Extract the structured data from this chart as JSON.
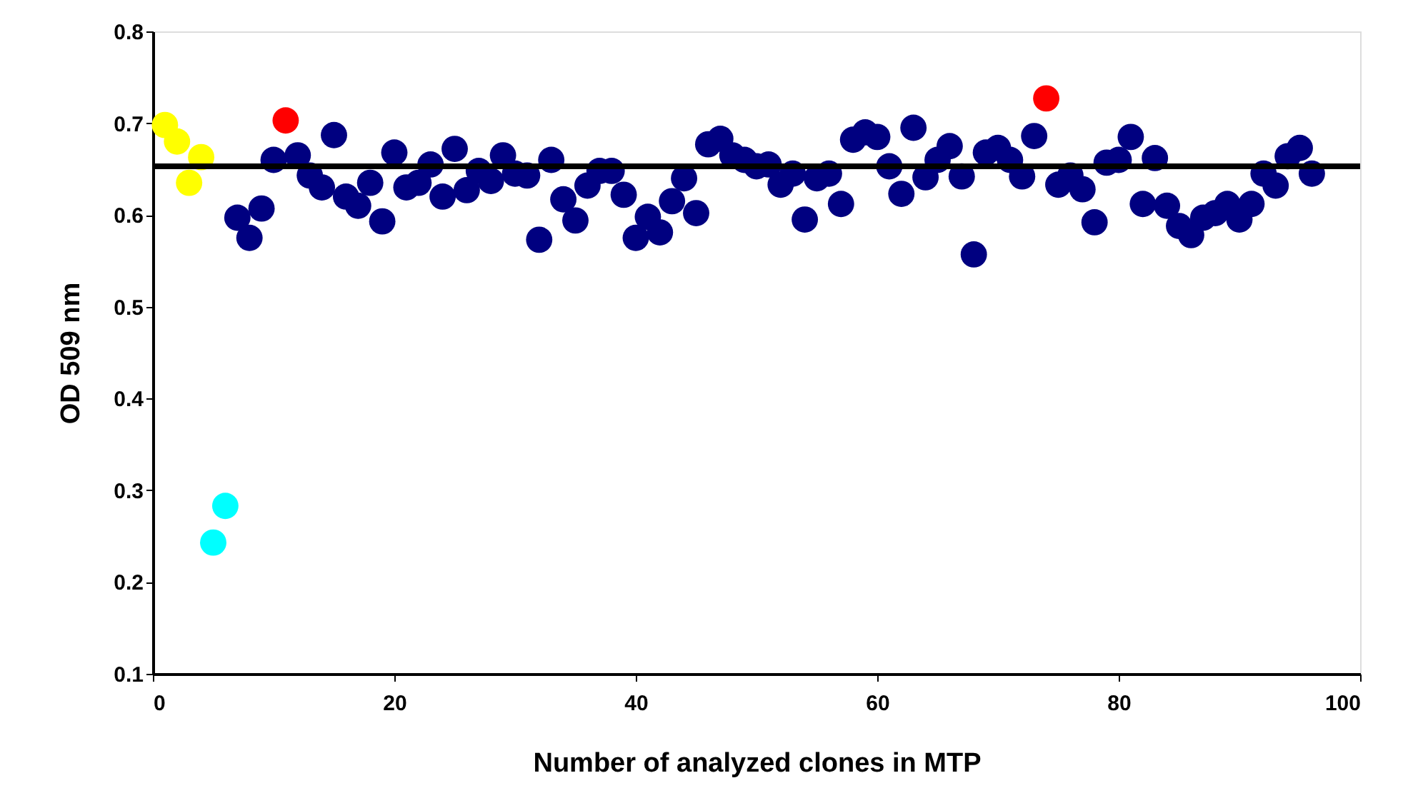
{
  "chart_data": {
    "type": "scatter",
    "xlabel": "Number of analyzed clones in MTP",
    "ylabel": "OD 509 nm",
    "xlim": [
      0,
      100
    ],
    "xticks": [
      0,
      20,
      40,
      60,
      80,
      100
    ],
    "ylim": [
      0.1,
      0.8
    ],
    "yticks": [
      0.1,
      0.2,
      0.3,
      0.4,
      0.5,
      0.6,
      0.7,
      0.8
    ],
    "grid": false,
    "legend": false,
    "marker": "circle",
    "series": [
      {
        "color": "#ffff00",
        "x": [
          1,
          2,
          3,
          4
        ],
        "values": [
          0.698,
          0.68,
          0.635,
          0.663
        ]
      },
      {
        "color": "#00ffff",
        "x": [
          5,
          6
        ],
        "values": [
          0.243,
          0.283
        ]
      },
      {
        "color": "#ff0000",
        "x": [
          11,
          74
        ],
        "values": [
          0.703,
          0.727
        ]
      },
      {
        "color": "#000080",
        "x": [
          7,
          8,
          9,
          10,
          12,
          13,
          14,
          15,
          16,
          17,
          18,
          19,
          20,
          21,
          22,
          23,
          24,
          25,
          26,
          27,
          28,
          29,
          30,
          31,
          32,
          33,
          34,
          35,
          36,
          37,
          38,
          39,
          40,
          41,
          42,
          43,
          44,
          45,
          46,
          47,
          48,
          49,
          50,
          51,
          52,
          53,
          54,
          55,
          56,
          57,
          58,
          59,
          60,
          61,
          62,
          63,
          64,
          65,
          66,
          67,
          68,
          69,
          70,
          71,
          72,
          73,
          75,
          76,
          77,
          78,
          79,
          80,
          81,
          82,
          83,
          84,
          85,
          86,
          87,
          88,
          89,
          90,
          91,
          92,
          93,
          94,
          95,
          96
        ],
        "values": [
          0.597,
          0.575,
          0.607,
          0.66,
          0.665,
          0.643,
          0.63,
          0.687,
          0.62,
          0.61,
          0.635,
          0.593,
          0.668,
          0.63,
          0.635,
          0.655,
          0.62,
          0.672,
          0.627,
          0.648,
          0.637,
          0.665,
          0.645,
          0.643,
          0.573,
          0.66,
          0.617,
          0.594,
          0.632,
          0.648,
          0.648,
          0.622,
          0.575,
          0.598,
          0.581,
          0.615,
          0.64,
          0.602,
          0.677,
          0.683,
          0.665,
          0.66,
          0.653,
          0.655,
          0.633,
          0.645,
          0.595,
          0.64,
          0.645,
          0.612,
          0.682,
          0.69,
          0.685,
          0.653,
          0.623,
          0.695,
          0.641,
          0.66,
          0.675,
          0.642,
          0.557,
          0.668,
          0.673,
          0.66,
          0.642,
          0.686,
          0.633,
          0.643,
          0.628,
          0.592,
          0.657,
          0.66,
          0.685,
          0.612,
          0.662,
          0.61,
          0.588,
          0.578,
          0.597,
          0.602,
          0.612,
          0.595,
          0.612,
          0.645,
          0.632,
          0.664,
          0.673,
          0.645
        ]
      }
    ],
    "ref_lines": [
      {
        "axis": "y",
        "value": 0.653,
        "color": "#000000",
        "line_style": "solid"
      }
    ]
  }
}
